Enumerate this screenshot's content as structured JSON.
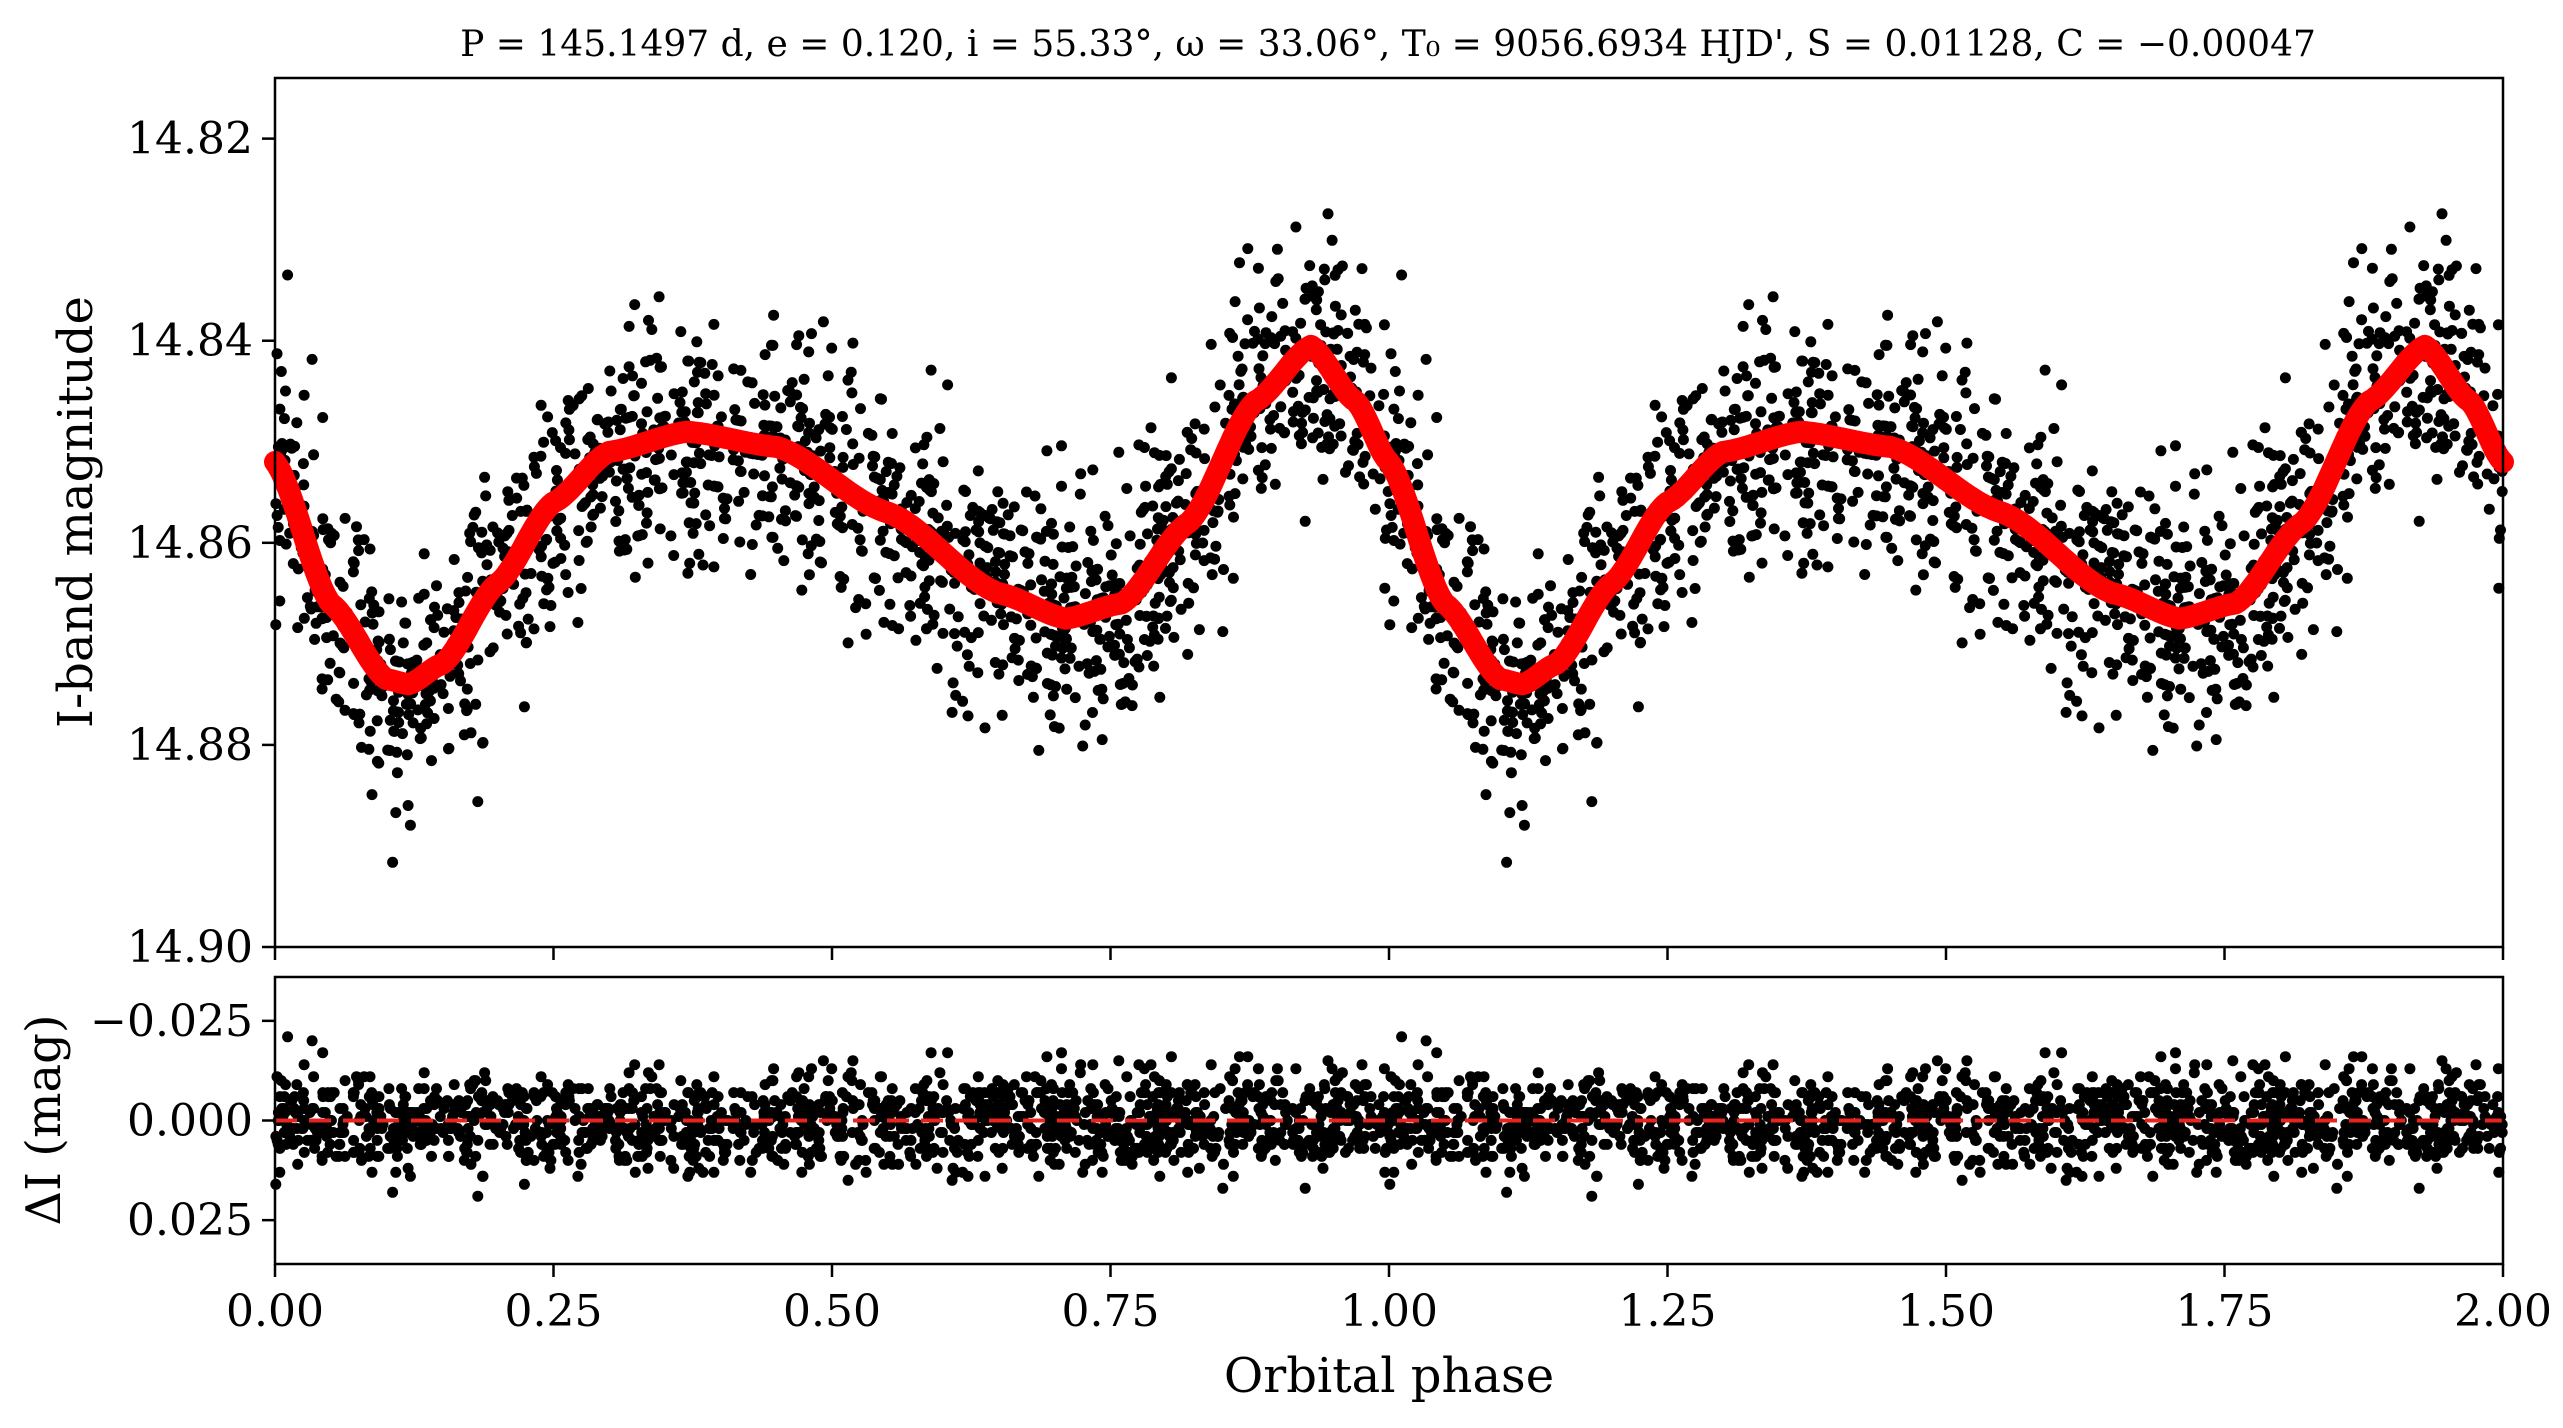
{
  "title": "P = 145.1497 d, e = 0.120, i = 55.33°, ω = 33.06°, T₀ = 9056.6934 HJD', S = 0.01128, C = −0.00047",
  "colors": {
    "points": "#000000",
    "model": "#ff0000",
    "zero_line": "#e8241c"
  },
  "chart_data": [
    {
      "type": "scatter",
      "panel": "top",
      "ylabel": "I-band magnitude",
      "xlabel": "",
      "xlim": [
        0.0,
        2.0
      ],
      "ylim": [
        14.9,
        14.814
      ],
      "y_inverted": true,
      "xticks": [
        0.0,
        0.25,
        0.5,
        0.75,
        1.0,
        1.25,
        1.5,
        1.75,
        2.0
      ],
      "yticks": [
        14.82,
        14.84,
        14.86,
        14.88,
        14.9
      ],
      "ytick_labels": [
        "14.82",
        "14.84",
        "14.86",
        "14.88",
        "14.90"
      ],
      "series": [
        {
          "kind": "observations",
          "point_count": "many (approx. 2400 per phase cycle, shown twice)",
          "scatter_rms_mag": 0.006
        },
        {
          "kind": "model",
          "phase": [
            0.0,
            0.05,
            0.1,
            0.12,
            0.15,
            0.2,
            0.25,
            0.3,
            0.37,
            0.45,
            0.55,
            0.65,
            0.71,
            0.76,
            0.82,
            0.88,
            0.93,
            0.97,
            1.0
          ],
          "magnitude": [
            14.852,
            14.866,
            14.8735,
            14.874,
            14.872,
            14.864,
            14.856,
            14.851,
            14.849,
            14.8505,
            14.857,
            14.865,
            14.8675,
            14.866,
            14.858,
            14.846,
            14.8405,
            14.846,
            14.852
          ]
        }
      ]
    },
    {
      "type": "scatter",
      "panel": "bottom",
      "xlabel": "Orbital phase",
      "ylabel": "ΔI (mag)",
      "xlim": [
        0.0,
        2.0
      ],
      "ylim": [
        0.036,
        -0.036
      ],
      "y_inverted": true,
      "xticks": [
        0.0,
        0.25,
        0.5,
        0.75,
        1.0,
        1.25,
        1.5,
        1.75,
        2.0
      ],
      "xtick_labels": [
        "0.00",
        "0.25",
        "0.50",
        "0.75",
        "1.00",
        "1.25",
        "1.50",
        "1.75",
        "2.00"
      ],
      "yticks": [
        -0.025,
        0.0,
        0.025
      ],
      "ytick_labels": [
        "−0.025",
        "0.000",
        "0.025"
      ],
      "series": [
        {
          "kind": "residuals",
          "scatter_rms_mag": 0.006
        },
        {
          "kind": "zero-line",
          "y": 0.0,
          "style": "dashed"
        }
      ]
    }
  ]
}
